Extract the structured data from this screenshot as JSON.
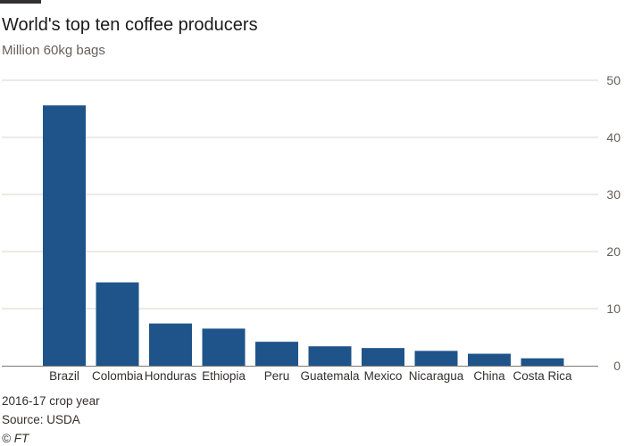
{
  "header": {
    "title": "World's top ten coffee producers",
    "subtitle": "Million 60kg bags"
  },
  "footer": {
    "note": "2016-17 crop year",
    "source": "Source: USDA",
    "credit": "© FT"
  },
  "colors": {
    "bar": "#1f548a",
    "grid": "#d9d4cf",
    "axis": "#807973"
  },
  "chart_data": {
    "type": "bar",
    "title": "World's top ten coffee producers",
    "subtitle": "Million 60kg bags",
    "categories": [
      "Brazil",
      "Colombia",
      "Honduras",
      "Ethiopia",
      "Peru",
      "Guatemala",
      "Mexico",
      "Nicaragua",
      "China",
      "Costa Rica"
    ],
    "values": [
      45.6,
      14.6,
      7.4,
      6.5,
      4.2,
      3.4,
      3.1,
      2.6,
      2.1,
      1.3
    ],
    "ylim": [
      0,
      50
    ],
    "yticks": [
      0,
      10,
      20,
      30,
      40,
      50
    ],
    "y_axis_side": "right",
    "grid": true
  }
}
